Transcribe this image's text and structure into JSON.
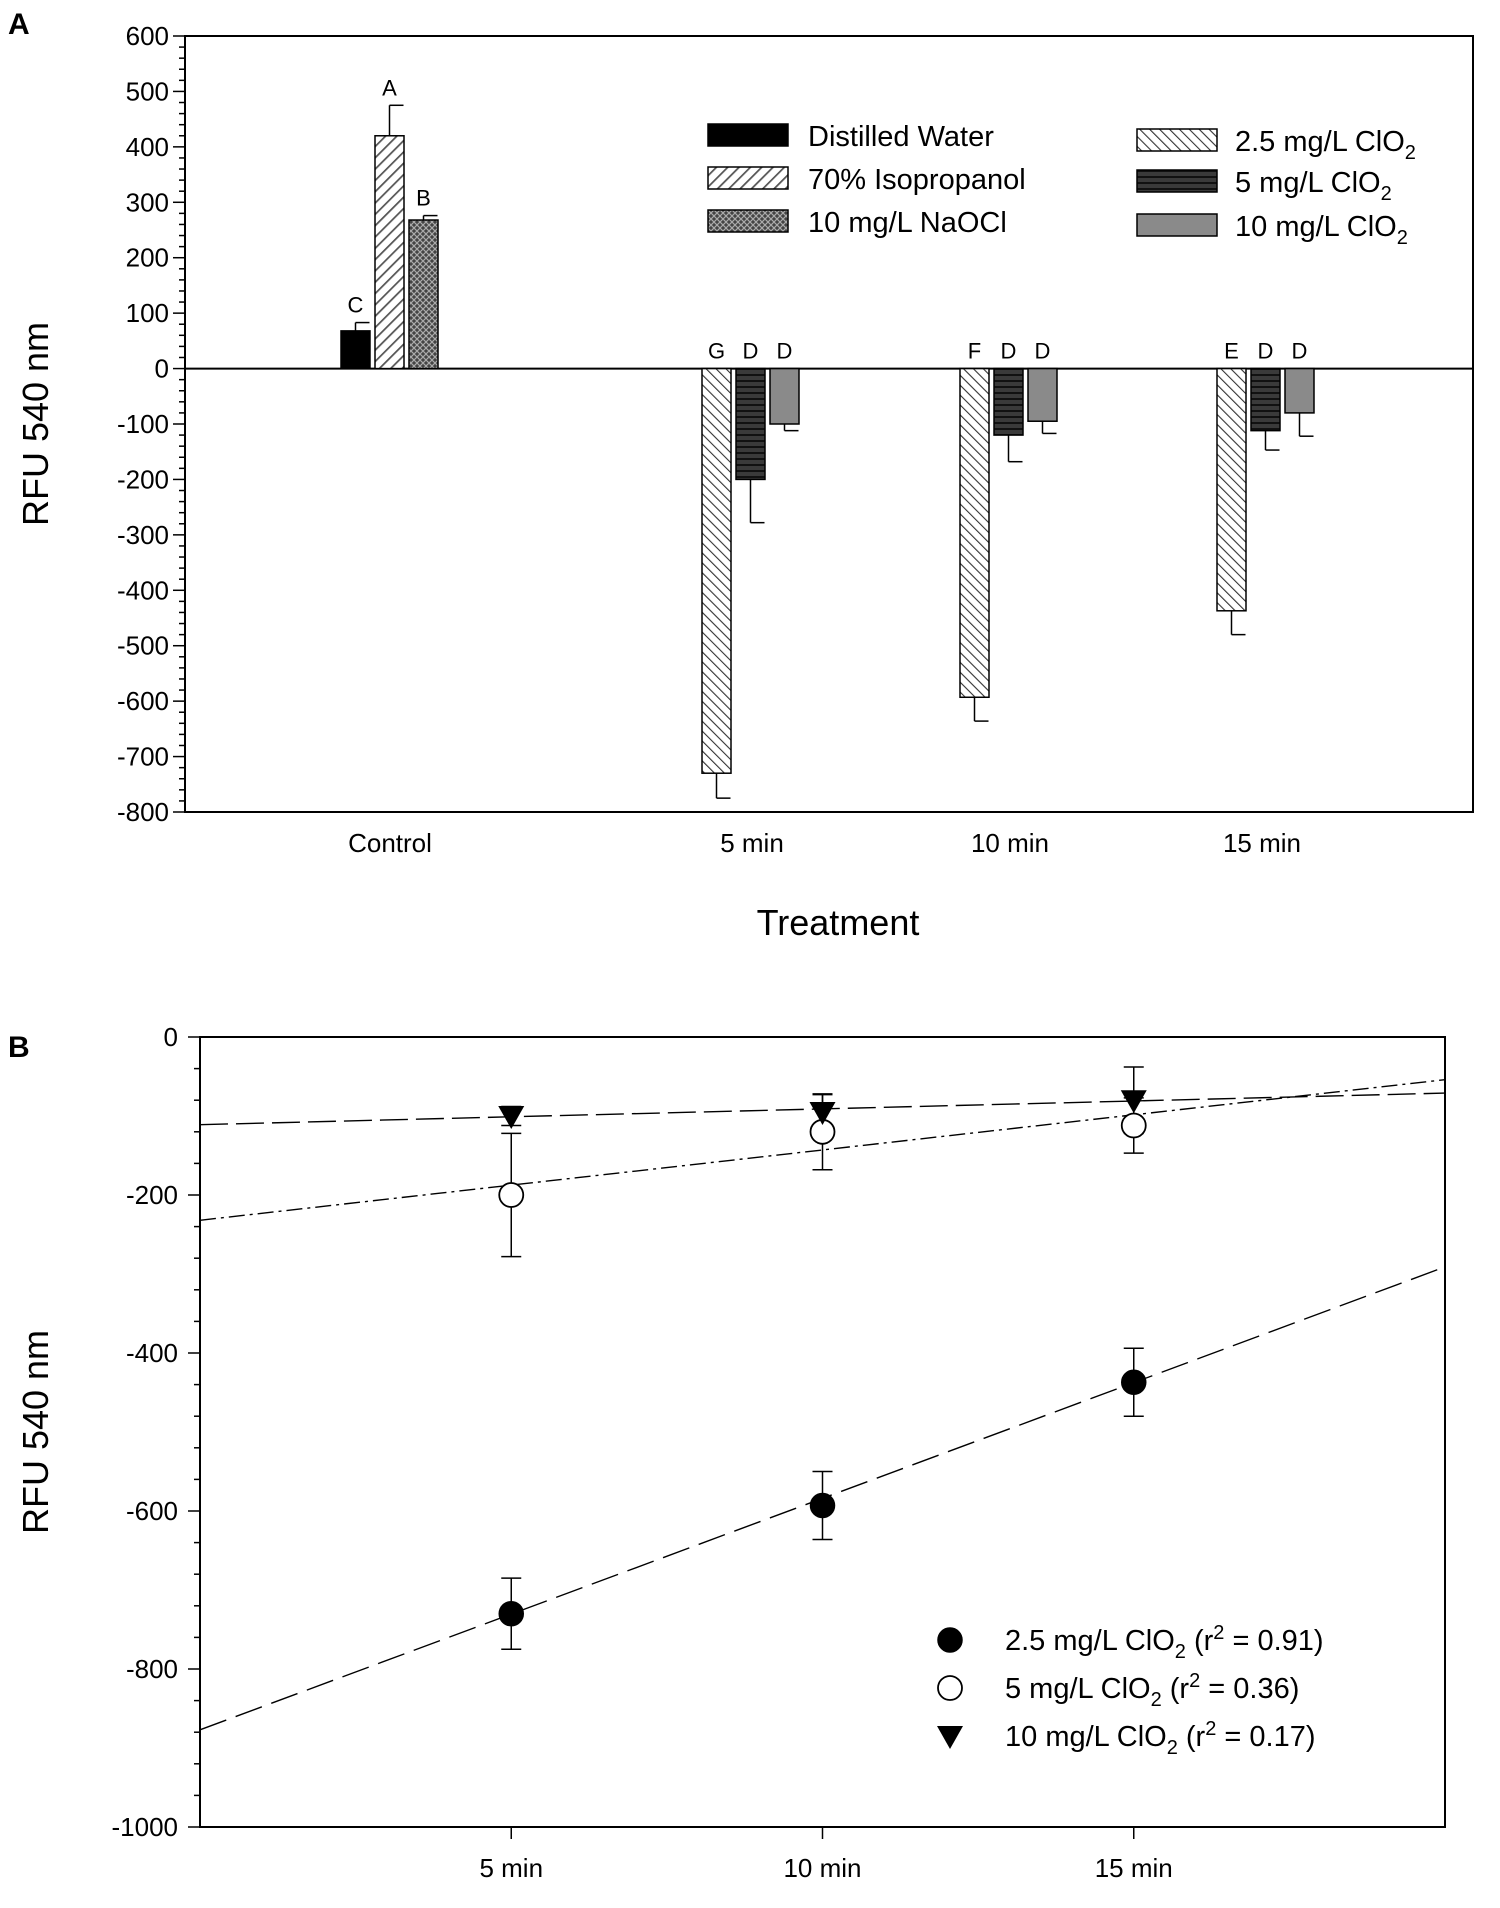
{
  "chart_data": [
    {
      "panel": "A",
      "type": "bar",
      "xlabel": "Treatment",
      "ylabel": "RFU 540 nm",
      "ylim": [
        -800,
        600
      ],
      "yticks": [
        600,
        500,
        400,
        300,
        200,
        100,
        0,
        -100,
        -200,
        -300,
        -400,
        -500,
        -600,
        -700,
        -800
      ],
      "categories": [
        "Control",
        "5 min",
        "10 min",
        "15 min"
      ],
      "legend": [
        {
          "key": "dw",
          "prefix": "Distilled Water",
          "sub": "",
          "suffix": ""
        },
        {
          "key": "iso",
          "prefix": "70% Isopropanol",
          "sub": "",
          "suffix": ""
        },
        {
          "key": "naocl",
          "prefix": "10 mg/L NaOCl",
          "sub": "",
          "suffix": ""
        },
        {
          "key": "c25",
          "prefix": "2.5 mg/L ClO",
          "sub": "2",
          "suffix": ""
        },
        {
          "key": "c5",
          "prefix": "5 mg/L ClO",
          "sub": "2",
          "suffix": ""
        },
        {
          "key": "c10",
          "prefix": "10 mg/L ClO",
          "sub": "2",
          "suffix": ""
        }
      ],
      "bars": [
        {
          "category": "Control",
          "series": "dw",
          "value": 68,
          "error": 15,
          "letter": "C"
        },
        {
          "category": "Control",
          "series": "iso",
          "value": 420,
          "error": 55,
          "letter": "A"
        },
        {
          "category": "Control",
          "series": "naocl",
          "value": 268,
          "error": 8,
          "letter": "B"
        },
        {
          "category": "5 min",
          "series": "c25",
          "value": -730,
          "error": 45,
          "letter": "G"
        },
        {
          "category": "5 min",
          "series": "c5",
          "value": -200,
          "error": 78,
          "letter": "D"
        },
        {
          "category": "5 min",
          "series": "c10",
          "value": -100,
          "error": 12,
          "letter": "D"
        },
        {
          "category": "10 min",
          "series": "c25",
          "value": -593,
          "error": 43,
          "letter": "F"
        },
        {
          "category": "10 min",
          "series": "c5",
          "value": -120,
          "error": 48,
          "letter": "D"
        },
        {
          "category": "10 min",
          "series": "c10",
          "value": -95,
          "error": 22,
          "letter": "D"
        },
        {
          "category": "15 min",
          "series": "c25",
          "value": -437,
          "error": 43,
          "letter": "E"
        },
        {
          "category": "15 min",
          "series": "c5",
          "value": -112,
          "error": 35,
          "letter": "D"
        },
        {
          "category": "15 min",
          "series": "c10",
          "value": -80,
          "error": 42,
          "letter": "D"
        }
      ]
    },
    {
      "panel": "B",
      "type": "scatter",
      "xlabel": "",
      "ylabel": "RFU 540 nm",
      "ylim": [
        -1000,
        0
      ],
      "yticks": [
        0,
        -200,
        -400,
        -600,
        -800,
        -1000
      ],
      "xlim": [
        0,
        20
      ],
      "categories": [
        "5 min",
        "10 min",
        "15 min"
      ],
      "x": [
        5,
        10,
        15
      ],
      "series": [
        {
          "key": "s25",
          "prefix": "2.5 mg/L ClO",
          "sub": "2",
          "r2text": " (r",
          "r2sup": "2",
          "r2val": " = 0.91)",
          "marker": "filled-circle",
          "values": [
            -730,
            -593,
            -437
          ],
          "errors": [
            45,
            43,
            43
          ],
          "fit": {
            "slope": 29.3,
            "intercept": -877
          }
        },
        {
          "key": "s5",
          "prefix": "5 mg/L ClO",
          "sub": "2",
          "r2text": " (r",
          "r2sup": "2",
          "r2val": " = 0.36)",
          "marker": "open-circle",
          "values": [
            -200,
            -120,
            -112
          ],
          "errors": [
            78,
            48,
            35
          ],
          "fit": {
            "slope": 8.9,
            "intercept": -232
          }
        },
        {
          "key": "s10",
          "prefix": "10 mg/L ClO",
          "sub": "2",
          "r2text": " (r",
          "r2sup": "2",
          "r2val": " = 0.17)",
          "marker": "filled-triangle-down",
          "values": [
            -100,
            -95,
            -80
          ],
          "errors": [
            12,
            22,
            42
          ],
          "fit": {
            "slope": 2.0,
            "intercept": -111
          }
        }
      ]
    }
  ],
  "panels": {
    "a_label": "A",
    "b_label": "B"
  }
}
